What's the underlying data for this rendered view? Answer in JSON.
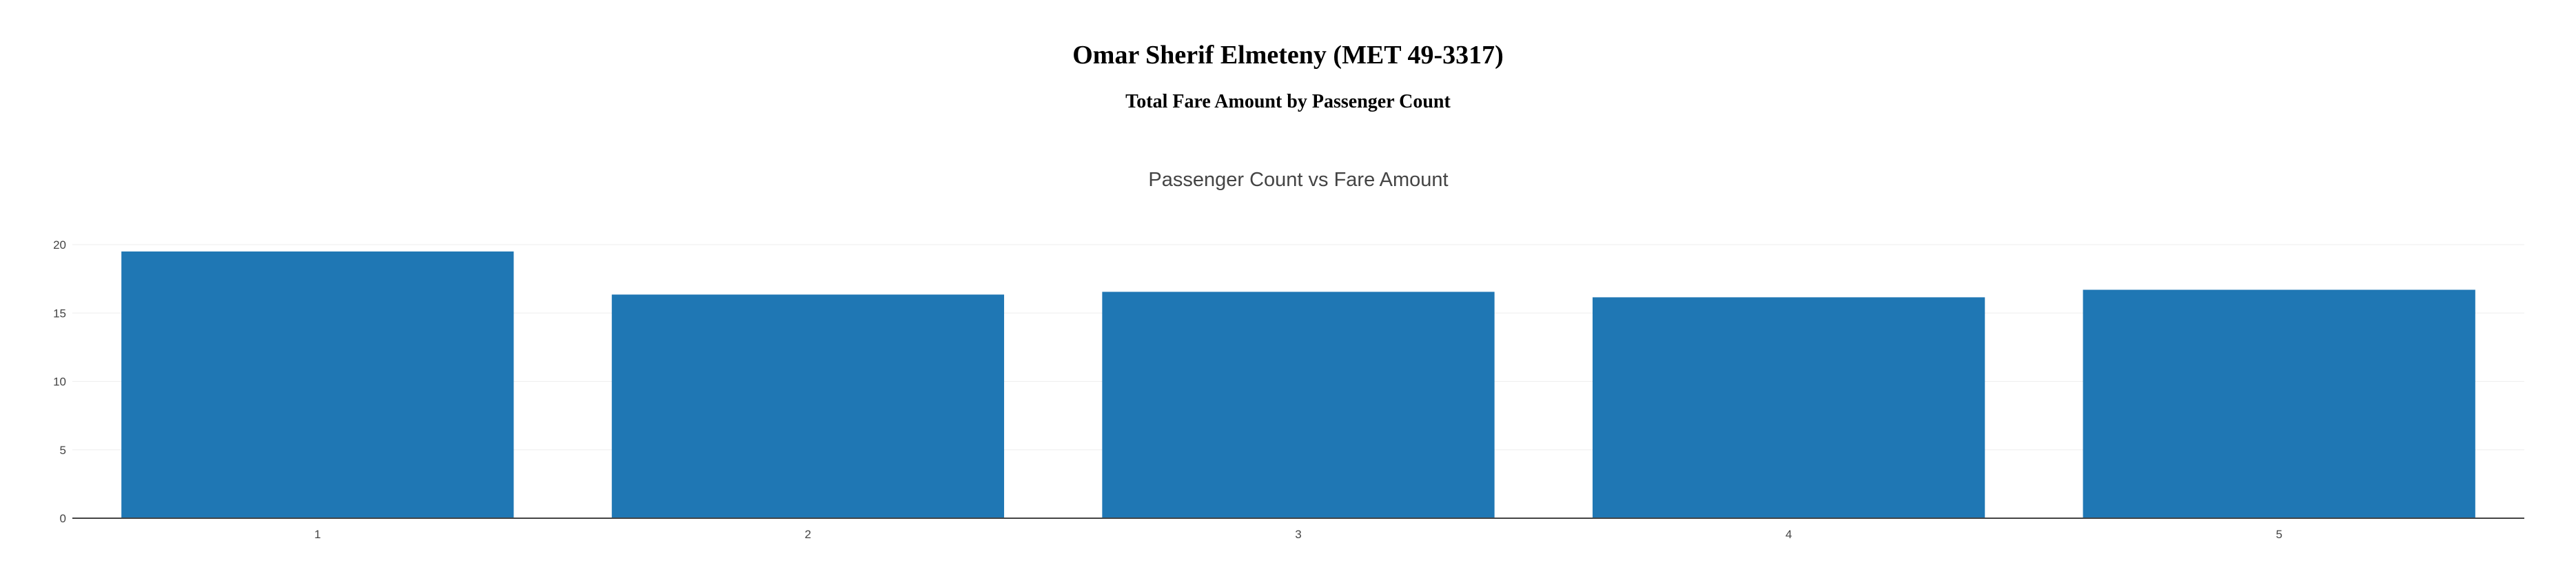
{
  "header": {
    "title": "Omar Sherif Elmeteny (MET 49-3317)",
    "subtitle": "Total Fare Amount by Passenger Count"
  },
  "chart_data": {
    "type": "bar",
    "title": "Passenger Count vs Fare Amount",
    "xlabel": "",
    "ylabel": "",
    "categories": [
      "1",
      "2",
      "3",
      "4",
      "5"
    ],
    "values": [
      19.5,
      16.35,
      16.55,
      16.15,
      16.7
    ],
    "ylim": [
      0,
      20
    ],
    "yticks": [
      0,
      5,
      10,
      15,
      20
    ],
    "grid": true,
    "legend": "none",
    "bar_color": "#1f77b4"
  }
}
